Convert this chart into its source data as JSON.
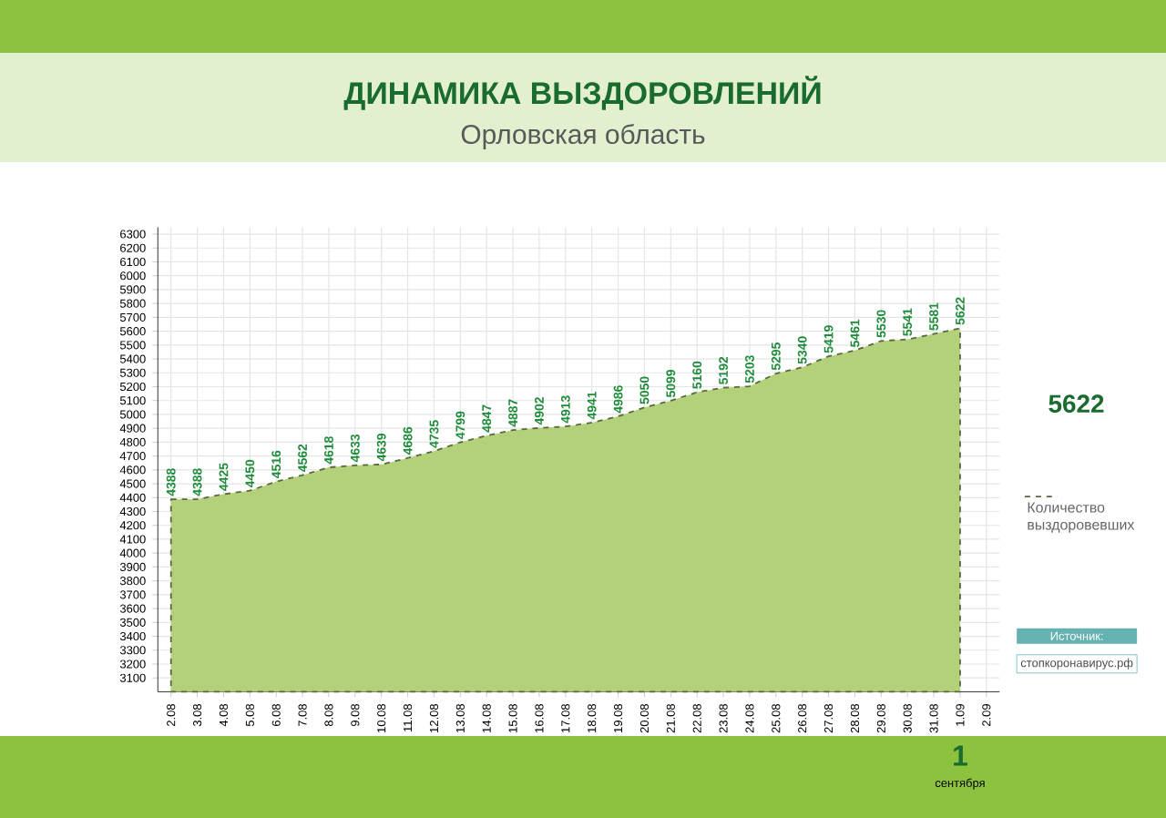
{
  "chart_data": {
    "type": "area",
    "title": "ДИНАМИКА ВЫЗДОРОВЛЕНИЙ",
    "subtitle": "Орловская область",
    "categories": [
      "2.08",
      "3.08",
      "4.08",
      "5.08",
      "6.08",
      "7.08",
      "8.08",
      "9.08",
      "10.08",
      "11.08",
      "12.08",
      "13.08",
      "14.08",
      "15.08",
      "16.08",
      "17.08",
      "18.08",
      "19.08",
      "20.08",
      "21.08",
      "22.08",
      "23.08",
      "24.08",
      "25.08",
      "26.08",
      "27.08",
      "28.08",
      "29.08",
      "30.08",
      "31.08",
      "1.09",
      "2.09"
    ],
    "series": [
      {
        "name": "Количество выздоровевших",
        "color": "#b3d17a",
        "values": [
          4388,
          4388,
          4425,
          4450,
          4516,
          4562,
          4618,
          4633,
          4639,
          4686,
          4735,
          4799,
          4847,
          4887,
          4902,
          4913,
          4941,
          4986,
          5050,
          5099,
          5160,
          5192,
          5203,
          5295,
          5340,
          5419,
          5461,
          5530,
          5541,
          5581,
          5622,
          null
        ]
      }
    ],
    "ylim": [
      3000,
      6350
    ],
    "yticks": [
      3100,
      3200,
      3300,
      3400,
      3500,
      3600,
      3700,
      3800,
      3900,
      4000,
      4100,
      4200,
      4300,
      4400,
      4500,
      4600,
      4700,
      4800,
      4900,
      5000,
      5100,
      5200,
      5300,
      5400,
      5500,
      5600,
      5700,
      5800,
      5900,
      6000,
      6100,
      6200,
      6300
    ],
    "data_labels": true,
    "grid": true,
    "legend": "right",
    "line_style": "dashed",
    "annotations": [
      "5622",
      "Источник:",
      "стопкоронавирус.рф",
      "1",
      "сентября"
    ]
  }
}
